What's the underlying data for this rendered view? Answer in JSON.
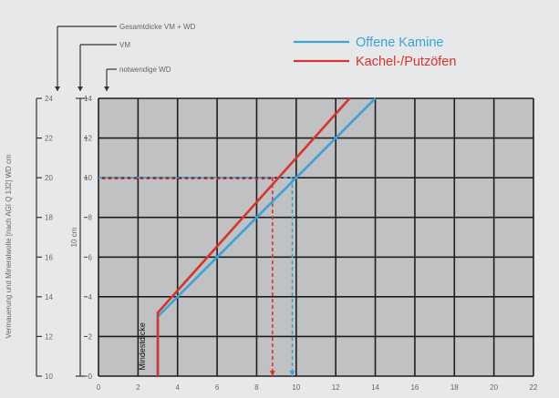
{
  "chart_data": {
    "type": "line",
    "title": "",
    "ylabel_outer": "Vermauerung und Mineralwolle [nach AGI Q 132] WD cm",
    "xlabel": "",
    "xlim": [
      0,
      22
    ],
    "ylim": [
      0,
      14
    ],
    "x_ticks": [
      "0",
      "2",
      "4",
      "6",
      "8",
      "10",
      "12",
      "14",
      "16",
      "18",
      "20",
      "22"
    ],
    "y_ticks_inner": [
      "0",
      "2",
      "4",
      "6",
      "8",
      "10",
      "12",
      "14"
    ],
    "y_ticks_outer": [
      "10",
      "12",
      "14",
      "16",
      "18",
      "20",
      "22",
      "24"
    ],
    "grid": true,
    "legend_position": "top-right",
    "series": [
      {
        "name": "Offene Kamine",
        "color": "#3aa3d9",
        "points": [
          [
            3.0,
            0
          ],
          [
            3.0,
            3.0
          ],
          [
            14.0,
            14.0
          ]
        ]
      },
      {
        "name": "Kachel-/Putzöfen",
        "color": "#d9342b",
        "points": [
          [
            3.0,
            0
          ],
          [
            3.0,
            3.2
          ],
          [
            12.7,
            14.0
          ]
        ]
      }
    ],
    "reference_lines": {
      "y": 10,
      "offene_kamine_x": 9.8,
      "kachel_x": 8.8
    },
    "annotations": {
      "mindestdicke": "Mindestdicke",
      "span_label": "10 cm"
    },
    "left_labels": {
      "gesamtdicke": "Gesamtdicke VM + WD",
      "vm": "VM",
      "wd": "notwendige WD"
    }
  }
}
